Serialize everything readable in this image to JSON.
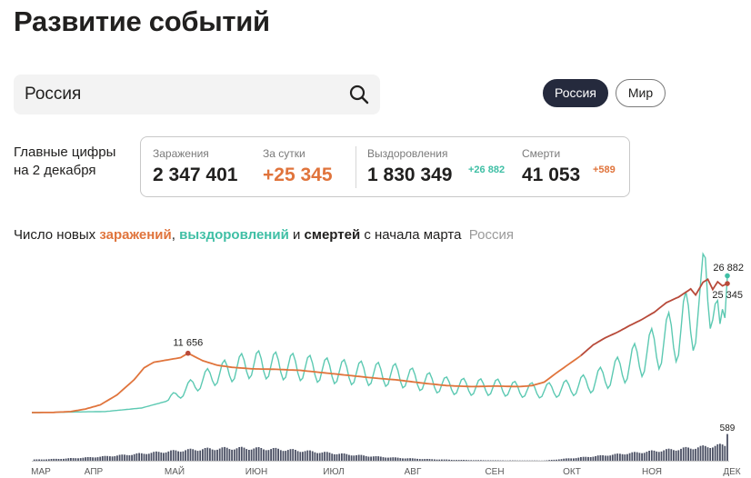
{
  "title": "Развитие событий",
  "search": {
    "value": "Россия"
  },
  "region_toggle": {
    "active": "Россия",
    "inactive": "Мир"
  },
  "summary": {
    "line1": "Главные цифры",
    "line2": "на 2 декабря"
  },
  "stats": {
    "infections": {
      "label": "Заражения",
      "value": "2 347 401"
    },
    "daily": {
      "label": "За сутки",
      "value": "+25 345"
    },
    "recoveries": {
      "label": "Выздоровления",
      "value": "1 830 349",
      "delta": "+26 882"
    },
    "deaths": {
      "label": "Смерти",
      "value": "41 053",
      "delta": "+589"
    }
  },
  "caption": {
    "p1": "Число новых ",
    "infections": "заражений",
    "p2": ", ",
    "recoveries": "выздоровлений",
    "p3": " и ",
    "deaths": "смертей",
    "p4": " с начала марта",
    "region": "Россия"
  },
  "colors": {
    "infections": "#e0743c",
    "infections_recent": "#b84a3a",
    "recoveries": "#3fbfa5",
    "deaths": "#4a4f63"
  },
  "chart_data": {
    "type": "line",
    "x_tick_labels": [
      "МАР",
      "АПР",
      "МАЙ",
      "ИЮН",
      "ИЮЛ",
      "АВГ",
      "СЕН",
      "ОКТ",
      "НОЯ",
      "ДЕК"
    ],
    "annotations": [
      "11 656",
      "26 882",
      "25 345",
      "589"
    ],
    "series": [
      {
        "name": "заражений",
        "points": [
          [
            0,
            0
          ],
          [
            8,
            20
          ],
          [
            16,
            200
          ],
          [
            22,
            700
          ],
          [
            28,
            1500
          ],
          [
            35,
            3500
          ],
          [
            42,
            6500
          ],
          [
            46,
            8800
          ],
          [
            50,
            9900
          ],
          [
            55,
            10300
          ],
          [
            61,
            10800
          ],
          [
            64,
            11656
          ],
          [
            70,
            10200
          ],
          [
            76,
            9300
          ],
          [
            82,
            8900
          ],
          [
            90,
            8600
          ],
          [
            100,
            8500
          ],
          [
            110,
            8300
          ],
          [
            120,
            7800
          ],
          [
            130,
            7300
          ],
          [
            140,
            6800
          ],
          [
            150,
            6400
          ],
          [
            160,
            5800
          ],
          [
            170,
            5300
          ],
          [
            180,
            5100
          ],
          [
            190,
            5200
          ],
          [
            200,
            5100
          ],
          [
            205,
            5300
          ],
          [
            210,
            6000
          ],
          [
            215,
            7800
          ],
          [
            220,
            9500
          ],
          [
            225,
            11200
          ],
          [
            230,
            13300
          ],
          [
            235,
            14700
          ],
          [
            240,
            15800
          ],
          [
            245,
            17100
          ],
          [
            250,
            18300
          ],
          [
            255,
            19700
          ],
          [
            260,
            21600
          ],
          [
            265,
            22700
          ],
          [
            270,
            24300
          ],
          [
            272,
            23100
          ],
          [
            275,
            25600
          ],
          [
            277,
            26200
          ],
          [
            279,
            24200
          ],
          [
            281,
            25700
          ],
          [
            283,
            24900
          ],
          [
            285,
            25345
          ]
        ]
      },
      {
        "name": "выздоровлений",
        "points": [
          [
            0,
            0
          ],
          [
            30,
            200
          ],
          [
            45,
            900
          ],
          [
            55,
            2200
          ],
          [
            62,
            4200
          ],
          [
            68,
            5900
          ],
          [
            75,
            7400
          ],
          [
            80,
            8200
          ],
          [
            85,
            8900
          ],
          [
            90,
            9500
          ],
          [
            100,
            9200
          ],
          [
            110,
            8900
          ],
          [
            120,
            8300
          ],
          [
            130,
            7900
          ],
          [
            140,
            7600
          ],
          [
            150,
            7300
          ],
          [
            160,
            6200
          ],
          [
            170,
            5300
          ],
          [
            180,
            5000
          ],
          [
            190,
            5000
          ],
          [
            200,
            4500
          ],
          [
            210,
            4300
          ],
          [
            220,
            4800
          ],
          [
            230,
            6000
          ],
          [
            240,
            8100
          ],
          [
            250,
            10900
          ],
          [
            260,
            14200
          ],
          [
            265,
            15800
          ],
          [
            270,
            18700
          ],
          [
            274,
            19700
          ],
          [
            276,
            26200
          ],
          [
            279,
            25600
          ],
          [
            282,
            12800
          ],
          [
            285,
            26882
          ]
        ]
      },
      {
        "name": "смертей",
        "points": [
          [
            1,
            0
          ],
          [
            285,
            589
          ]
        ]
      }
    ]
  }
}
